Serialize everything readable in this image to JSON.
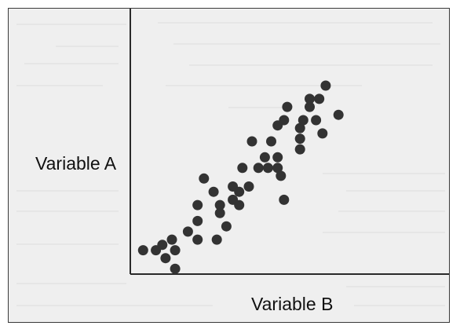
{
  "chart_data": {
    "type": "scatter",
    "title": "",
    "xlabel": "Variable B",
    "ylabel": "Variable A",
    "xlim": [
      0,
      100
    ],
    "ylim": [
      0,
      100
    ],
    "grid": false,
    "legend": "none",
    "axis_ticks": false,
    "colors": {
      "point": "#333333",
      "axis": "#2a2a2a",
      "background": "#efefef"
    },
    "series": [
      {
        "points": [
          [
            4,
            9
          ],
          [
            8,
            9
          ],
          [
            10,
            11
          ],
          [
            11,
            6
          ],
          [
            13,
            13
          ],
          [
            14,
            9
          ],
          [
            14,
            2
          ],
          [
            18,
            16
          ],
          [
            21,
            13
          ],
          [
            21,
            20
          ],
          [
            21,
            26
          ],
          [
            23,
            36
          ],
          [
            26,
            31
          ],
          [
            27,
            13
          ],
          [
            28,
            23
          ],
          [
            28,
            26
          ],
          [
            30,
            18
          ],
          [
            32,
            28
          ],
          [
            32,
            33
          ],
          [
            34,
            26
          ],
          [
            34,
            31
          ],
          [
            35,
            40
          ],
          [
            37,
            33
          ],
          [
            38,
            50
          ],
          [
            40,
            40
          ],
          [
            42,
            44
          ],
          [
            43,
            40
          ],
          [
            44,
            50
          ],
          [
            46,
            40
          ],
          [
            46,
            44
          ],
          [
            46,
            56
          ],
          [
            47,
            37
          ],
          [
            48,
            28
          ],
          [
            48,
            58
          ],
          [
            49,
            63
          ],
          [
            53,
            47
          ],
          [
            53,
            51
          ],
          [
            53,
            55
          ],
          [
            54,
            58
          ],
          [
            56,
            63
          ],
          [
            56,
            66
          ],
          [
            58,
            58
          ],
          [
            59,
            66
          ],
          [
            60,
            53
          ],
          [
            61,
            71
          ],
          [
            65,
            60
          ]
        ]
      }
    ]
  }
}
